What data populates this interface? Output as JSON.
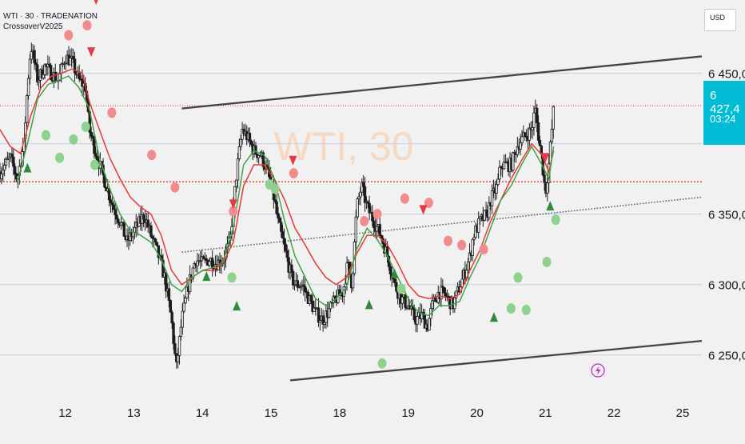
{
  "header": {
    "symbol_line": "WTI · 30 · TRADENATION",
    "indicator": "CrossoverV2025"
  },
  "currency": "USD",
  "price_tag": {
    "price": "6 427,4",
    "countdown": "03:24"
  },
  "watermark": "WTI, 30",
  "colors": {
    "background": "#f1f1f1",
    "candle": "#1e1e1e",
    "red_ma": "#e53935",
    "green_ma": "#43a047",
    "sell_marker": "#e53945",
    "buy_marker": "#2e8b3e",
    "red_dot": "#f28b8b",
    "green_dot": "#8fd18f",
    "price_tag": "#00bcd4",
    "channel": "#444444",
    "red_level": "#e53935"
  },
  "chart_data": {
    "type": "candlestick",
    "title": "WTI · 30 · TRADENATION",
    "y_axis": {
      "side": "right",
      "tick_labels": [
        "6 450,0",
        "6 350,0",
        "6 300,0",
        "6 250,0"
      ],
      "ticks": [
        6450,
        6400,
        6350,
        6300,
        6250
      ],
      "range": [
        6226,
        6502
      ]
    },
    "x_axis": {
      "tick_labels": [
        "12",
        "13",
        "14",
        "15",
        "18",
        "19",
        "20",
        "21",
        "22",
        "25"
      ],
      "tick_days": [
        1,
        2,
        3,
        4,
        5,
        6,
        7,
        8,
        9,
        10
      ],
      "range": [
        0.05,
        10.28
      ]
    },
    "current_price": 6427.4,
    "horizontal_levels": {
      "red_dashed": [
        6427,
        6373
      ]
    },
    "channel": {
      "upper": [
        [
          2.7,
          6425
        ],
        [
          10.28,
          6462
        ]
      ],
      "lower": [
        [
          4.28,
          6232
        ],
        [
          10.28,
          6260
        ]
      ],
      "mid_dotted": [
        [
          2.7,
          6323
        ],
        [
          10.28,
          6362
        ]
      ]
    },
    "price_path": [
      [
        0.05,
        6380
      ],
      [
        0.2,
        6390
      ],
      [
        0.3,
        6375
      ],
      [
        0.4,
        6400
      ],
      [
        0.45,
        6440
      ],
      [
        0.5,
        6470
      ],
      [
        0.6,
        6445
      ],
      [
        0.7,
        6455
      ],
      [
        0.8,
        6450
      ],
      [
        0.9,
        6445
      ],
      [
        1.0,
        6462
      ],
      [
        1.1,
        6458
      ],
      [
        1.2,
        6445
      ],
      [
        1.3,
        6440
      ],
      [
        1.35,
        6410
      ],
      [
        1.5,
        6385
      ],
      [
        1.6,
        6370
      ],
      [
        1.7,
        6355
      ],
      [
        1.8,
        6345
      ],
      [
        1.9,
        6330
      ],
      [
        2.0,
        6338
      ],
      [
        2.1,
        6345
      ],
      [
        2.15,
        6350
      ],
      [
        2.25,
        6335
      ],
      [
        2.35,
        6322
      ],
      [
        2.45,
        6305
      ],
      [
        2.55,
        6275
      ],
      [
        2.62,
        6240
      ],
      [
        2.7,
        6275
      ],
      [
        2.8,
        6300
      ],
      [
        2.9,
        6318
      ],
      [
        3.0,
        6315
      ],
      [
        3.1,
        6318
      ],
      [
        3.2,
        6315
      ],
      [
        3.3,
        6318
      ],
      [
        3.4,
        6330
      ],
      [
        3.5,
        6380
      ],
      [
        3.58,
        6410
      ],
      [
        3.65,
        6405
      ],
      [
        3.75,
        6395
      ],
      [
        3.85,
        6392
      ],
      [
        3.95,
        6380
      ],
      [
        4.05,
        6360
      ],
      [
        4.1,
        6345
      ],
      [
        4.2,
        6325
      ],
      [
        4.3,
        6305
      ],
      [
        4.35,
        6300
      ],
      [
        4.45,
        6300
      ],
      [
        4.55,
        6290
      ],
      [
        4.65,
        6280
      ],
      [
        4.75,
        6275
      ],
      [
        4.85,
        6282
      ],
      [
        4.95,
        6290
      ],
      [
        5.05,
        6295
      ],
      [
        5.12,
        6315
      ],
      [
        5.18,
        6300
      ],
      [
        5.25,
        6355
      ],
      [
        5.32,
        6370
      ],
      [
        5.4,
        6355
      ],
      [
        5.5,
        6345
      ],
      [
        5.6,
        6335
      ],
      [
        5.7,
        6320
      ],
      [
        5.8,
        6300
      ],
      [
        5.9,
        6290
      ],
      [
        6.0,
        6285
      ],
      [
        6.1,
        6275
      ],
      [
        6.2,
        6278
      ],
      [
        6.28,
        6270
      ],
      [
        6.35,
        6285
      ],
      [
        6.45,
        6295
      ],
      [
        6.55,
        6292
      ],
      [
        6.65,
        6285
      ],
      [
        6.7,
        6292
      ],
      [
        6.8,
        6305
      ],
      [
        6.9,
        6320
      ],
      [
        6.95,
        6335
      ],
      [
        7.05,
        6345
      ],
      [
        7.15,
        6350
      ],
      [
        7.2,
        6360
      ],
      [
        7.3,
        6370
      ],
      [
        7.35,
        6385
      ],
      [
        7.4,
        6385
      ],
      [
        7.5,
        6385
      ],
      [
        7.6,
        6400
      ],
      [
        7.7,
        6405
      ],
      [
        7.8,
        6410
      ],
      [
        7.85,
        6425
      ],
      [
        7.9,
        6405
      ],
      [
        7.95,
        6388
      ],
      [
        8.0,
        6365
      ],
      [
        8.05,
        6385
      ],
      [
        8.12,
        6425
      ]
    ],
    "series": [
      {
        "name": "",
        "color": "#e53935",
        "points": [
          [
            0.05,
            6410
          ],
          [
            0.2,
            6398
          ],
          [
            0.35,
            6393
          ],
          [
            0.5,
            6420
          ],
          [
            0.65,
            6440
          ],
          [
            0.8,
            6448
          ],
          [
            0.95,
            6450
          ],
          [
            1.1,
            6453
          ],
          [
            1.25,
            6450
          ],
          [
            1.35,
            6430
          ],
          [
            1.5,
            6410
          ],
          [
            1.65,
            6390
          ],
          [
            1.8,
            6375
          ],
          [
            1.95,
            6362
          ],
          [
            2.1,
            6355
          ],
          [
            2.25,
            6350
          ],
          [
            2.4,
            6335
          ],
          [
            2.55,
            6310
          ],
          [
            2.7,
            6300
          ],
          [
            2.85,
            6305
          ],
          [
            3.0,
            6310
          ],
          [
            3.15,
            6310
          ],
          [
            3.3,
            6315
          ],
          [
            3.45,
            6330
          ],
          [
            3.6,
            6370
          ],
          [
            3.75,
            6385
          ],
          [
            3.9,
            6385
          ],
          [
            4.05,
            6375
          ],
          [
            4.2,
            6360
          ],
          [
            4.35,
            6340
          ],
          [
            4.5,
            6328
          ],
          [
            4.65,
            6315
          ],
          [
            4.8,
            6305
          ],
          [
            4.95,
            6300
          ],
          [
            5.1,
            6305
          ],
          [
            5.25,
            6322
          ],
          [
            5.4,
            6335
          ],
          [
            5.55,
            6335
          ],
          [
            5.7,
            6328
          ],
          [
            5.85,
            6315
          ],
          [
            6.0,
            6300
          ],
          [
            6.15,
            6292
          ],
          [
            6.3,
            6290
          ],
          [
            6.45,
            6292
          ],
          [
            6.6,
            6290
          ],
          [
            6.75,
            6293
          ],
          [
            6.9,
            6310
          ],
          [
            7.05,
            6325
          ],
          [
            7.2,
            6345
          ],
          [
            7.35,
            6360
          ],
          [
            7.5,
            6375
          ],
          [
            7.65,
            6388
          ],
          [
            7.8,
            6400
          ],
          [
            7.95,
            6392
          ],
          [
            8.05,
            6380
          ],
          [
            8.12,
            6395
          ]
        ]
      },
      {
        "name": "",
        "color": "#43a047",
        "points": [
          [
            0.3,
            6372
          ],
          [
            0.45,
            6400
          ],
          [
            0.6,
            6432
          ],
          [
            0.75,
            6442
          ],
          [
            0.9,
            6445
          ],
          [
            1.05,
            6448
          ],
          [
            1.2,
            6440
          ],
          [
            1.35,
            6425
          ],
          [
            1.5,
            6390
          ],
          [
            1.65,
            6368
          ],
          [
            1.8,
            6350
          ],
          [
            1.95,
            6338
          ],
          [
            2.1,
            6335
          ],
          [
            2.25,
            6330
          ],
          [
            2.4,
            6318
          ],
          [
            2.55,
            6300
          ],
          [
            2.7,
            6295
          ],
          [
            2.85,
            6305
          ],
          [
            3.0,
            6310
          ],
          [
            3.15,
            6312
          ],
          [
            3.3,
            6316
          ],
          [
            3.45,
            6340
          ],
          [
            3.6,
            6385
          ],
          [
            3.75,
            6395
          ],
          [
            3.9,
            6392
          ],
          [
            4.05,
            6375
          ],
          [
            4.2,
            6345
          ],
          [
            4.35,
            6320
          ],
          [
            4.5,
            6305
          ],
          [
            4.65,
            6290
          ],
          [
            4.8,
            6285
          ],
          [
            4.95,
            6290
          ],
          [
            5.1,
            6298
          ],
          [
            5.25,
            6325
          ],
          [
            5.4,
            6340
          ],
          [
            5.55,
            6332
          ],
          [
            5.7,
            6320
          ],
          [
            5.85,
            6305
          ],
          [
            6.0,
            6290
          ],
          [
            6.15,
            6280
          ],
          [
            6.3,
            6278
          ],
          [
            6.45,
            6285
          ],
          [
            6.6,
            6285
          ],
          [
            6.75,
            6288
          ],
          [
            6.9,
            6305
          ],
          [
            7.05,
            6320
          ],
          [
            7.2,
            6340
          ],
          [
            7.35,
            6360
          ],
          [
            7.5,
            6370
          ],
          [
            7.65,
            6385
          ],
          [
            7.8,
            6398
          ],
          [
            7.95,
            6385
          ],
          [
            8.05,
            6375
          ],
          [
            8.12,
            6398
          ]
        ]
      }
    ],
    "sell_markers": [
      [
        1.45,
        6502
      ],
      [
        1.38,
        6465
      ],
      [
        3.45,
        6357
      ],
      [
        4.32,
        6388
      ],
      [
        6.22,
        6353
      ],
      [
        8.0,
        6390
      ]
    ],
    "buy_markers": [
      [
        0.45,
        6383
      ],
      [
        3.06,
        6306
      ],
      [
        3.5,
        6285
      ],
      [
        5.43,
        6286
      ],
      [
        5.8,
        6308
      ],
      [
        7.25,
        6277
      ],
      [
        8.07,
        6356
      ]
    ],
    "red_dots": [
      [
        1.05,
        6477
      ],
      [
        1.32,
        6484
      ],
      [
        1.68,
        6422
      ],
      [
        2.26,
        6392
      ],
      [
        2.6,
        6369
      ],
      [
        3.45,
        6352
      ],
      [
        4.33,
        6379
      ],
      [
        5.36,
        6345
      ],
      [
        5.55,
        6350
      ],
      [
        5.95,
        6361
      ],
      [
        6.3,
        6358
      ],
      [
        6.58,
        6331
      ],
      [
        6.78,
        6328
      ],
      [
        7.1,
        6325
      ]
    ],
    "green_dots": [
      [
        0.72,
        6406
      ],
      [
        0.92,
        6390
      ],
      [
        1.12,
        6403
      ],
      [
        1.3,
        6412
      ],
      [
        1.43,
        6385
      ],
      [
        3.43,
        6305
      ],
      [
        3.98,
        6371
      ],
      [
        4.06,
        6368
      ],
      [
        5.62,
        6244
      ],
      [
        5.9,
        6297
      ],
      [
        7.5,
        6283
      ],
      [
        7.6,
        6305
      ],
      [
        7.72,
        6282
      ],
      [
        8.02,
        6316
      ],
      [
        8.15,
        6346
      ]
    ]
  }
}
